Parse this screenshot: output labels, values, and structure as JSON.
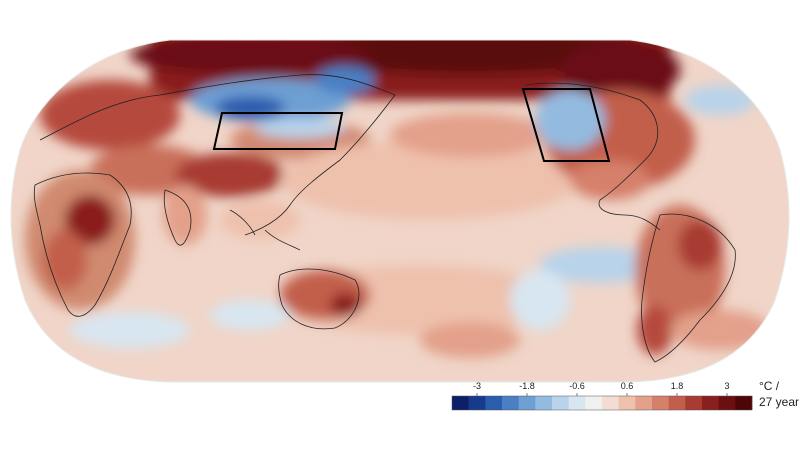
{
  "legend": {
    "ticks": [
      "-3",
      "-1.8",
      "-0.6",
      "0.6",
      "1.8",
      "3"
    ],
    "tick_values": [
      -3,
      -1.8,
      -0.6,
      0.6,
      1.8,
      3
    ],
    "range": [
      -3.6,
      3.6
    ],
    "unit_line1": "°C /",
    "unit_line2": "27 year",
    "colors": [
      "#0d1f66",
      "#183a8c",
      "#2b5cad",
      "#4a7fc4",
      "#6d9fd3",
      "#93bbe0",
      "#b8d3ea",
      "#d8e6f1",
      "#f0f0ef",
      "#f3ddd3",
      "#eec1ad",
      "#e3a08a",
      "#d5806a",
      "#c25e4c",
      "#a83b32",
      "#8a1f1f",
      "#6b0f12",
      "#4d0508"
    ]
  },
  "map": {
    "projection": "Robinson",
    "color_ocean_base": "#f0d2c4",
    "color_land_base": "#e0a88f",
    "color_warm_strong": "#7a1414",
    "color_cold": "#4a7fc4",
    "boxes": [
      "east-asia-box",
      "north-america-box"
    ]
  }
}
